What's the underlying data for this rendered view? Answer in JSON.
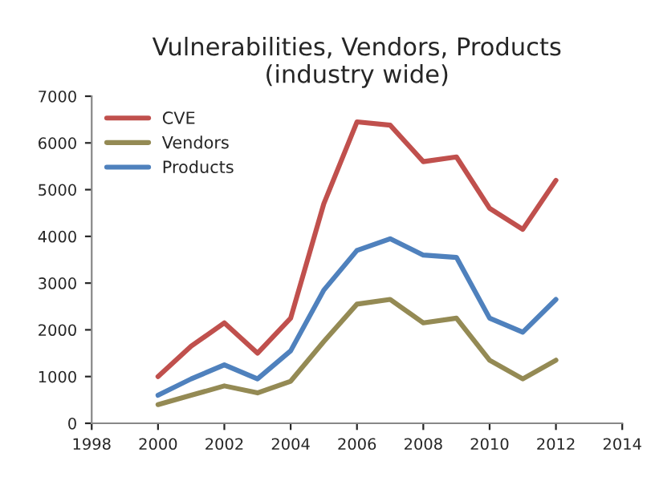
{
  "chart_data": {
    "type": "line",
    "title": "Vulnerabilities, Vendors, Products\n(industry wide)",
    "x": [
      2000,
      2001,
      2002,
      2003,
      2004,
      2005,
      2006,
      2007,
      2008,
      2009,
      2010,
      2011,
      2012
    ],
    "series": [
      {
        "name": "CVE",
        "color": "#c0504d",
        "values": [
          1000,
          1650,
          2150,
          1500,
          2250,
          4700,
          6450,
          6380,
          5600,
          5700,
          4600,
          4150,
          5200
        ]
      },
      {
        "name": "Vendors",
        "color": "#948a54",
        "values": [
          400,
          600,
          800,
          650,
          900,
          1750,
          2550,
          2650,
          2150,
          2250,
          1350,
          950,
          1350
        ]
      },
      {
        "name": "Products",
        "color": "#4f81bd",
        "values": [
          600,
          950,
          1250,
          950,
          1550,
          2850,
          3700,
          3950,
          3600,
          3550,
          2250,
          1950,
          2650
        ]
      }
    ],
    "xlim": [
      1998,
      2014
    ],
    "xticks": [
      1998,
      2000,
      2002,
      2004,
      2006,
      2008,
      2010,
      2012,
      2014
    ],
    "ylim": [
      0,
      7000
    ],
    "yticks": [
      0,
      1000,
      2000,
      3000,
      4000,
      5000,
      6000,
      7000
    ],
    "grid": false,
    "legend": "top left",
    "marker": "none",
    "line_style": "solid"
  }
}
